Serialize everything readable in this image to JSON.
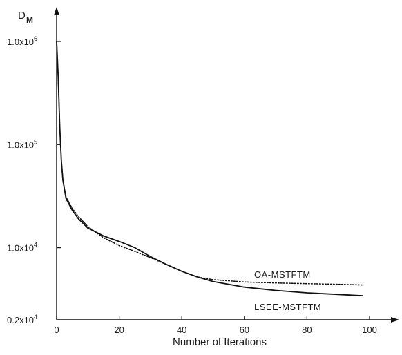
{
  "chart_data": {
    "type": "line",
    "xlabel": "Number of Iterations",
    "ylabel": "D",
    "ylabel_subscript": "M",
    "y_scale": "log",
    "xlim": [
      0,
      100
    ],
    "ylim": [
      2000,
      1000000
    ],
    "x_ticks": [
      {
        "value": 0,
        "label": "0"
      },
      {
        "value": 20,
        "label": "20"
      },
      {
        "value": 40,
        "label": "40"
      },
      {
        "value": 60,
        "label": "60"
      },
      {
        "value": 80,
        "label": "80"
      },
      {
        "value": 100,
        "label": "100"
      }
    ],
    "y_ticks": [
      {
        "value": 1000000,
        "label": "1.0x10",
        "exp": "6"
      },
      {
        "value": 100000,
        "label": "1.0x10",
        "exp": "5"
      },
      {
        "value": 10000,
        "label": "1.0x10",
        "exp": "4"
      },
      {
        "value": 2000,
        "label": "0.2x10",
        "exp": "4"
      }
    ],
    "series": [
      {
        "name": "OA-MSTFTM",
        "style": "dotted",
        "x": [
          0,
          0.5,
          1,
          1.5,
          2,
          3,
          5,
          7,
          10,
          15,
          20,
          25,
          30,
          35,
          40,
          45,
          50,
          60,
          70,
          80,
          90,
          98
        ],
        "y": [
          1000000,
          450000,
          150000,
          70000,
          45000,
          31000,
          24000,
          20000,
          16000,
          12500,
          10500,
          9200,
          8000,
          6900,
          5900,
          5200,
          4900,
          4650,
          4550,
          4480,
          4420,
          4350
        ]
      },
      {
        "name": "LSEE-MSTFTM",
        "style": "solid",
        "x": [
          0,
          0.5,
          1,
          1.5,
          2,
          3,
          5,
          7,
          10,
          15,
          20,
          25,
          30,
          35,
          40,
          45,
          50,
          60,
          70,
          80,
          90,
          98
        ],
        "y": [
          1000000,
          450000,
          150000,
          70000,
          45000,
          30000,
          23000,
          19000,
          15500,
          13000,
          11500,
          10000,
          8200,
          6900,
          5900,
          5200,
          4700,
          4150,
          3850,
          3650,
          3520,
          3420
        ]
      }
    ]
  }
}
